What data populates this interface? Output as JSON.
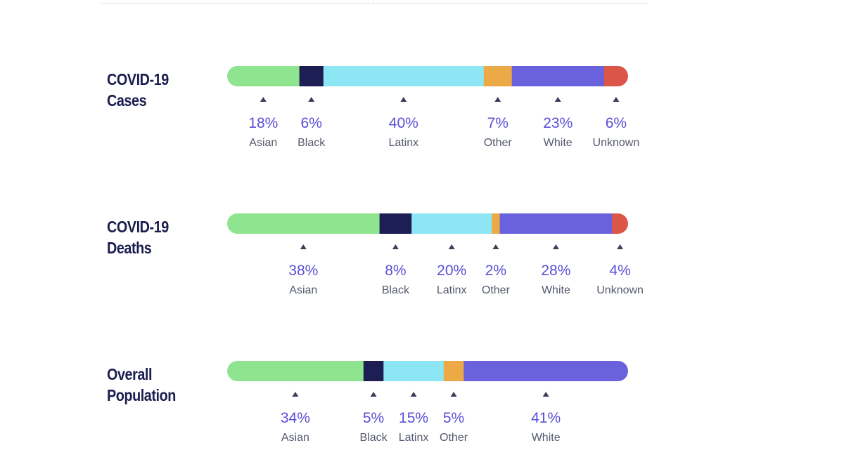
{
  "chart_data": [
    {
      "type": "bar",
      "title": "COVID-19 Cases",
      "title_lines": [
        "COVID-19",
        "Cases"
      ],
      "orientation": "horizontal-stacked",
      "unit": "%",
      "segments": [
        {
          "category": "Asian",
          "value": 18,
          "label": "18%",
          "color": "#8ee48f"
        },
        {
          "category": "Black",
          "value": 6,
          "label": "6%",
          "color": "#1d1e54"
        },
        {
          "category": "Latinx",
          "value": 40,
          "label": "40%",
          "color": "#8de6f3"
        },
        {
          "category": "Other",
          "value": 7,
          "label": "7%",
          "color": "#ecaa47"
        },
        {
          "category": "White",
          "value": 23,
          "label": "23%",
          "color": "#6a62dc"
        },
        {
          "category": "Unknown",
          "value": 6,
          "label": "6%",
          "color": "#dc5549"
        }
      ]
    },
    {
      "type": "bar",
      "title": "COVID-19 Deaths",
      "title_lines": [
        "COVID-19",
        "Deaths"
      ],
      "orientation": "horizontal-stacked",
      "unit": "%",
      "segments": [
        {
          "category": "Asian",
          "value": 38,
          "label": "38%",
          "color": "#8ee48f"
        },
        {
          "category": "Black",
          "value": 8,
          "label": "8%",
          "color": "#1d1e54"
        },
        {
          "category": "Latinx",
          "value": 20,
          "label": "20%",
          "color": "#8de6f3"
        },
        {
          "category": "Other",
          "value": 2,
          "label": "2%",
          "color": "#ecaa47"
        },
        {
          "category": "White",
          "value": 28,
          "label": "28%",
          "color": "#6a62dc"
        },
        {
          "category": "Unknown",
          "value": 4,
          "label": "4%",
          "color": "#dc5549"
        }
      ]
    },
    {
      "type": "bar",
      "title": "Overall Population",
      "title_lines": [
        "Overall",
        "Population"
      ],
      "orientation": "horizontal-stacked",
      "unit": "%",
      "segments": [
        {
          "category": "Asian",
          "value": 34,
          "label": "34%",
          "color": "#8ee48f"
        },
        {
          "category": "Black",
          "value": 5,
          "label": "5%",
          "color": "#1d1e54"
        },
        {
          "category": "Latinx",
          "value": 15,
          "label": "15%",
          "color": "#8de6f3"
        },
        {
          "category": "Other",
          "value": 5,
          "label": "5%",
          "color": "#ecaa47"
        },
        {
          "category": "White",
          "value": 41,
          "label": "41%",
          "color": "#6a62dc"
        }
      ]
    }
  ]
}
